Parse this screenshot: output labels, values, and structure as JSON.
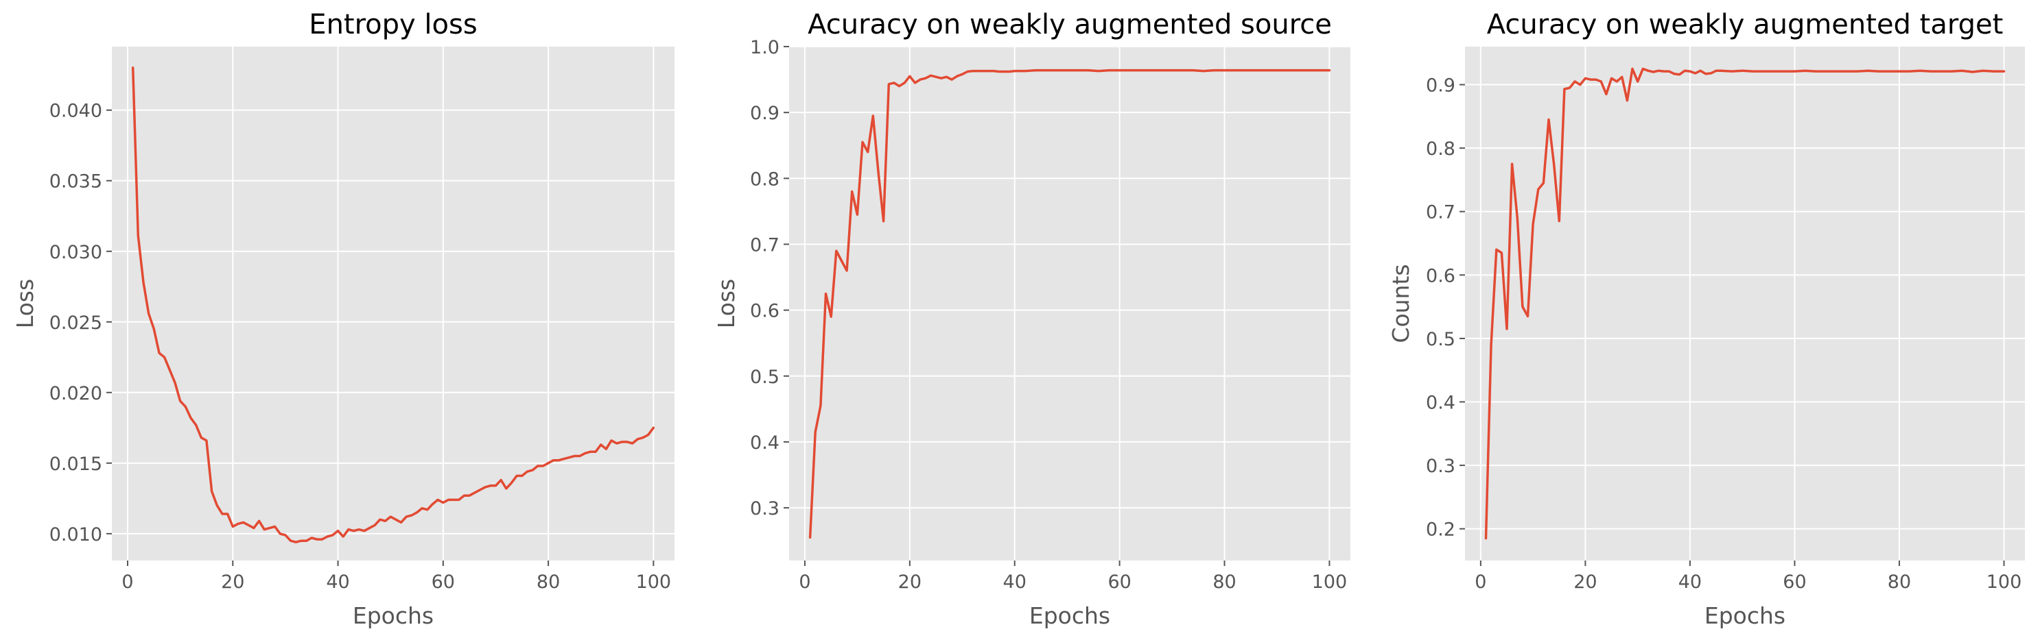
{
  "figure": {
    "background": "#ffffff",
    "plot_background": "#e5e5e5",
    "grid_color": "#ffffff",
    "line_color": "#e24a33",
    "tick_label_color": "#555555",
    "title_color": "#000000"
  },
  "chart_data": [
    {
      "type": "line",
      "title": "Entropy loss",
      "xlabel": "Epochs",
      "ylabel": "Loss",
      "xlim": [
        -3,
        104
      ],
      "ylim": [
        0.0081,
        0.0445
      ],
      "grid": true,
      "xticks": [
        0,
        20,
        40,
        60,
        80,
        100
      ],
      "xtick_labels": [
        "0",
        "20",
        "40",
        "60",
        "80",
        "100"
      ],
      "yticks": [
        0.01,
        0.015,
        0.02,
        0.025,
        0.03,
        0.035,
        0.04
      ],
      "ytick_labels": [
        "0.010",
        "0.015",
        "0.020",
        "0.025",
        "0.030",
        "0.035",
        "0.040"
      ],
      "series": [
        {
          "x": [
            1,
            2,
            3,
            4,
            5,
            6,
            7,
            8,
            9,
            10,
            11,
            12,
            13,
            14,
            15,
            16,
            17,
            18,
            19,
            20,
            21,
            22,
            23,
            24,
            25,
            26,
            27,
            28,
            29,
            30,
            31,
            32,
            33,
            34,
            35,
            36,
            37,
            38,
            39,
            40,
            41,
            42,
            43,
            44,
            45,
            46,
            47,
            48,
            49,
            50,
            51,
            52,
            53,
            54,
            55,
            56,
            57,
            58,
            59,
            60,
            61,
            62,
            63,
            64,
            65,
            66,
            67,
            68,
            69,
            70,
            71,
            72,
            73,
            74,
            75,
            76,
            77,
            78,
            79,
            80,
            81,
            82,
            83,
            84,
            85,
            86,
            87,
            88,
            89,
            90,
            91,
            92,
            93,
            94,
            95,
            96,
            97,
            98,
            99,
            100
          ],
          "y": [
            0.043,
            0.0311,
            0.0278,
            0.0256,
            0.0245,
            0.0228,
            0.0225,
            0.0216,
            0.0207,
            0.0194,
            0.019,
            0.0182,
            0.0177,
            0.0168,
            0.0166,
            0.013,
            0.012,
            0.0114,
            0.0114,
            0.0105,
            0.0107,
            0.0108,
            0.0106,
            0.0104,
            0.0109,
            0.0103,
            0.0104,
            0.0105,
            0.01,
            0.0099,
            0.0095,
            0.0094,
            0.0095,
            0.0095,
            0.0097,
            0.0096,
            0.0096,
            0.0098,
            0.0099,
            0.0102,
            0.0098,
            0.0103,
            0.0102,
            0.0103,
            0.0102,
            0.0104,
            0.0106,
            0.011,
            0.0109,
            0.0112,
            0.011,
            0.0108,
            0.0112,
            0.0113,
            0.0115,
            0.0118,
            0.0117,
            0.0121,
            0.0124,
            0.0122,
            0.0124,
            0.0124,
            0.0124,
            0.0127,
            0.0127,
            0.0129,
            0.0131,
            0.0133,
            0.0134,
            0.0134,
            0.0138,
            0.0132,
            0.0136,
            0.0141,
            0.0141,
            0.0144,
            0.0145,
            0.0148,
            0.0148,
            0.015,
            0.0152,
            0.0152,
            0.0153,
            0.0154,
            0.0155,
            0.0155,
            0.0157,
            0.0158,
            0.0158,
            0.0163,
            0.016,
            0.0166,
            0.0164,
            0.0165,
            0.0165,
            0.0164,
            0.0167,
            0.0168,
            0.017,
            0.0175
          ]
        }
      ]
    },
    {
      "type": "line",
      "title": "Acuracy on weakly augmented source",
      "xlabel": "Epochs",
      "ylabel": "Loss",
      "xlim": [
        -3,
        104
      ],
      "ylim": [
        0.22,
        1.0
      ],
      "grid": true,
      "xticks": [
        0,
        20,
        40,
        60,
        80,
        100
      ],
      "xtick_labels": [
        "0",
        "20",
        "40",
        "60",
        "80",
        "100"
      ],
      "yticks": [
        0.3,
        0.4,
        0.5,
        0.6,
        0.7,
        0.8,
        0.9,
        1.0
      ],
      "ytick_labels": [
        "0.3",
        "0.4",
        "0.5",
        "0.6",
        "0.7",
        "0.8",
        "0.9",
        "1.0"
      ],
      "series": [
        {
          "x": [
            1,
            2,
            3,
            4,
            5,
            6,
            7,
            8,
            9,
            10,
            11,
            12,
            13,
            14,
            15,
            16,
            17,
            18,
            19,
            20,
            21,
            22,
            23,
            24,
            25,
            26,
            27,
            28,
            29,
            30,
            31,
            32,
            33,
            34,
            35,
            36,
            37,
            38,
            39,
            40,
            42,
            44,
            46,
            48,
            50,
            52,
            54,
            56,
            58,
            60,
            62,
            64,
            66,
            68,
            70,
            72,
            74,
            76,
            78,
            80,
            82,
            84,
            86,
            88,
            90,
            92,
            94,
            96,
            98,
            100
          ],
          "y": [
            0.255,
            0.415,
            0.455,
            0.625,
            0.59,
            0.69,
            0.675,
            0.66,
            0.78,
            0.745,
            0.855,
            0.84,
            0.895,
            0.81,
            0.735,
            0.943,
            0.945,
            0.94,
            0.945,
            0.955,
            0.945,
            0.95,
            0.952,
            0.956,
            0.954,
            0.952,
            0.954,
            0.95,
            0.955,
            0.958,
            0.962,
            0.963,
            0.963,
            0.963,
            0.963,
            0.963,
            0.962,
            0.962,
            0.962,
            0.963,
            0.963,
            0.964,
            0.964,
            0.964,
            0.964,
            0.964,
            0.964,
            0.963,
            0.964,
            0.964,
            0.964,
            0.964,
            0.964,
            0.964,
            0.964,
            0.964,
            0.964,
            0.963,
            0.964,
            0.964,
            0.964,
            0.964,
            0.964,
            0.964,
            0.964,
            0.964,
            0.964,
            0.964,
            0.964,
            0.964
          ]
        }
      ]
    },
    {
      "type": "line",
      "title": "Acuracy on weakly augmented target",
      "xlabel": "Epochs",
      "ylabel": "Counts",
      "xlim": [
        -3,
        104
      ],
      "ylim": [
        0.15,
        0.96
      ],
      "grid": true,
      "xticks": [
        0,
        20,
        40,
        60,
        80,
        100
      ],
      "xtick_labels": [
        "0",
        "20",
        "40",
        "60",
        "80",
        "100"
      ],
      "yticks": [
        0.2,
        0.3,
        0.4,
        0.5,
        0.6,
        0.7,
        0.8,
        0.9
      ],
      "ytick_labels": [
        "0.2",
        "0.3",
        "0.4",
        "0.5",
        "0.6",
        "0.7",
        "0.8",
        "0.9"
      ],
      "series": [
        {
          "x": [
            1,
            2,
            3,
            4,
            5,
            6,
            7,
            8,
            9,
            10,
            11,
            12,
            13,
            14,
            15,
            16,
            17,
            18,
            19,
            20,
            21,
            22,
            23,
            24,
            25,
            26,
            27,
            28,
            29,
            30,
            31,
            32,
            33,
            34,
            35,
            36,
            37,
            38,
            39,
            40,
            41,
            42,
            43,
            44,
            45,
            46,
            48,
            50,
            52,
            54,
            56,
            58,
            60,
            62,
            64,
            66,
            68,
            70,
            72,
            74,
            76,
            78,
            80,
            82,
            84,
            86,
            88,
            90,
            92,
            94,
            96,
            98,
            100
          ],
          "y": [
            0.185,
            0.49,
            0.64,
            0.635,
            0.515,
            0.775,
            0.69,
            0.55,
            0.535,
            0.68,
            0.735,
            0.745,
            0.845,
            0.775,
            0.685,
            0.893,
            0.895,
            0.905,
            0.9,
            0.91,
            0.908,
            0.908,
            0.905,
            0.885,
            0.91,
            0.905,
            0.912,
            0.875,
            0.925,
            0.905,
            0.925,
            0.922,
            0.92,
            0.922,
            0.921,
            0.921,
            0.917,
            0.916,
            0.922,
            0.921,
            0.918,
            0.922,
            0.917,
            0.918,
            0.922,
            0.922,
            0.921,
            0.922,
            0.921,
            0.921,
            0.921,
            0.921,
            0.921,
            0.922,
            0.921,
            0.921,
            0.921,
            0.921,
            0.921,
            0.922,
            0.921,
            0.921,
            0.921,
            0.921,
            0.922,
            0.921,
            0.921,
            0.921,
            0.922,
            0.92,
            0.922,
            0.921,
            0.921
          ]
        }
      ]
    }
  ]
}
